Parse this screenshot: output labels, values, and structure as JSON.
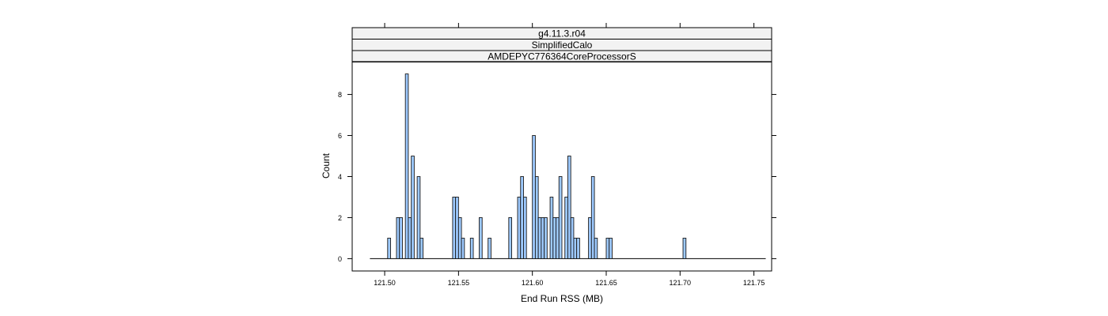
{
  "chart_data": {
    "type": "bar",
    "strips": [
      "g4.11.3.r04",
      "SimplifiedCalo",
      "AMDEPYC776364CoreProcessorS"
    ],
    "xlabel": "End Run RSS (MB)",
    "ylabel": "Count",
    "xlim": [
      121.478,
      121.762
    ],
    "ylim": [
      -0.6,
      9.6
    ],
    "xticks": [
      "121.50",
      "121.55",
      "121.60",
      "121.65",
      "121.70",
      "121.75"
    ],
    "yticks": [
      "0",
      "2",
      "4",
      "6",
      "8"
    ],
    "bin_start": 121.49,
    "bin_width": 0.002,
    "bin_end": 121.758,
    "bins": [
      {
        "x": 121.502,
        "count": 1
      },
      {
        "x": 121.508,
        "count": 2
      },
      {
        "x": 121.51,
        "count": 2
      },
      {
        "x": 121.514,
        "count": 9
      },
      {
        "x": 121.516,
        "count": 2
      },
      {
        "x": 121.518,
        "count": 5
      },
      {
        "x": 121.522,
        "count": 4
      },
      {
        "x": 121.524,
        "count": 1
      },
      {
        "x": 121.546,
        "count": 3
      },
      {
        "x": 121.548,
        "count": 3
      },
      {
        "x": 121.55,
        "count": 2
      },
      {
        "x": 121.552,
        "count": 1
      },
      {
        "x": 121.558,
        "count": 1
      },
      {
        "x": 121.564,
        "count": 2
      },
      {
        "x": 121.57,
        "count": 1
      },
      {
        "x": 121.584,
        "count": 2
      },
      {
        "x": 121.59,
        "count": 3
      },
      {
        "x": 121.592,
        "count": 4
      },
      {
        "x": 121.594,
        "count": 3
      },
      {
        "x": 121.6,
        "count": 6
      },
      {
        "x": 121.602,
        "count": 4
      },
      {
        "x": 121.604,
        "count": 2
      },
      {
        "x": 121.606,
        "count": 2
      },
      {
        "x": 121.608,
        "count": 2
      },
      {
        "x": 121.612,
        "count": 3
      },
      {
        "x": 121.614,
        "count": 2
      },
      {
        "x": 121.616,
        "count": 2
      },
      {
        "x": 121.618,
        "count": 4
      },
      {
        "x": 121.622,
        "count": 3
      },
      {
        "x": 121.624,
        "count": 5
      },
      {
        "x": 121.626,
        "count": 2
      },
      {
        "x": 121.628,
        "count": 1
      },
      {
        "x": 121.63,
        "count": 1
      },
      {
        "x": 121.638,
        "count": 2
      },
      {
        "x": 121.64,
        "count": 4
      },
      {
        "x": 121.642,
        "count": 1
      },
      {
        "x": 121.65,
        "count": 1
      },
      {
        "x": 121.652,
        "count": 1
      },
      {
        "x": 121.702,
        "count": 1
      }
    ],
    "bar_fill": "#9ecaff",
    "bar_stroke": "#1a1a1a",
    "strip_fill": "#f2f2f2",
    "grid": false
  }
}
